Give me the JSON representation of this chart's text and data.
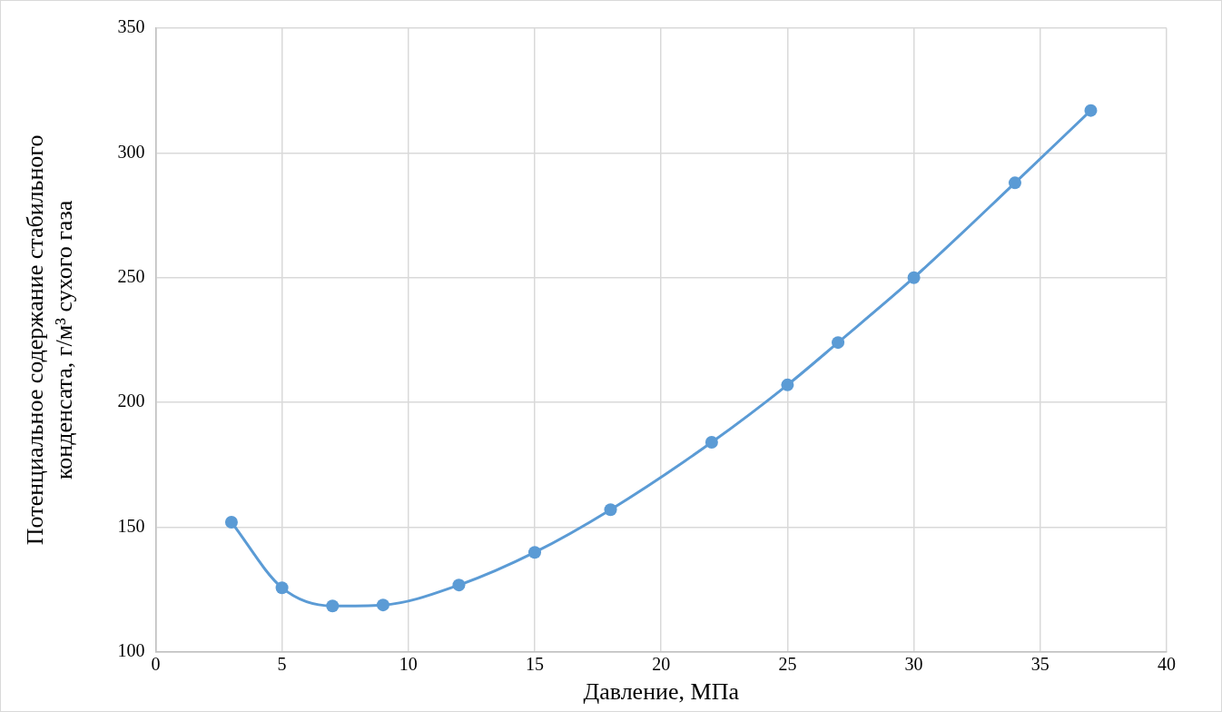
{
  "chart_data": {
    "type": "line",
    "xlabel": "Давление, МПа",
    "ylabel": "Потенциальное содержание стабильного конденсата, г/м³ сухого газа",
    "x": [
      3,
      5,
      7,
      9,
      12,
      15,
      18,
      22,
      25,
      27,
      30,
      34,
      37
    ],
    "series": [
      {
        "color": "#5b9bd5",
        "values": [
          152,
          125.7,
          118.4,
          118.8,
          126.8,
          139.9,
          157,
          184,
          207,
          224,
          250,
          288,
          317
        ]
      }
    ],
    "xlim": [
      0,
      40
    ],
    "xticks": [
      0,
      5,
      10,
      15,
      20,
      25,
      30,
      35,
      40
    ],
    "ylim": [
      100,
      350
    ],
    "yticks": [
      100,
      150,
      200,
      250,
      300,
      350
    ],
    "grid": true,
    "legend": false,
    "marker": "circle",
    "line_style": "solid"
  }
}
